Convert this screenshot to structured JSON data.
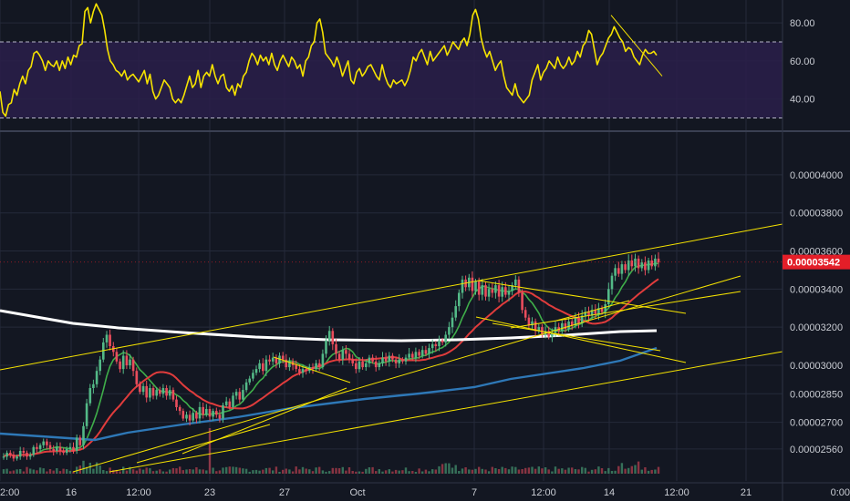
{
  "chart_data": [
    {
      "type": "line",
      "title": "",
      "xlabel": "",
      "ylabel": "",
      "ylim": [
        25,
        92
      ],
      "yticks": [
        "80.00",
        "60.00",
        "40.00"
      ],
      "band": [
        30,
        70
      ],
      "colors": {
        "line": "#f6e300",
        "band": "#2a1f4a",
        "bandLines": "#b6b6c8",
        "trend": "#f6e300"
      },
      "series": [
        {
          "values": [
            44,
            33,
            31,
            37,
            38,
            45,
            42,
            48,
            52,
            48,
            55,
            57,
            64,
            65,
            63,
            60,
            55,
            60,
            58,
            57,
            60,
            55,
            60,
            56,
            62,
            58,
            63,
            62,
            68,
            69,
            86,
            88,
            80,
            86,
            90,
            87,
            84,
            76,
            66,
            60,
            58,
            55,
            54,
            52,
            55,
            50,
            52,
            53,
            51,
            49,
            52,
            55,
            48,
            53,
            44,
            40,
            42,
            46,
            50,
            48,
            46,
            40,
            38,
            40,
            38,
            42,
            47,
            52,
            46,
            48,
            55,
            46,
            52,
            54,
            52,
            58,
            52,
            48,
            52,
            53,
            46,
            44,
            47,
            42,
            48,
            46,
            52,
            54,
            60,
            64,
            62,
            58,
            63,
            60,
            62,
            58,
            64,
            58,
            55,
            60,
            63,
            60,
            57,
            62,
            60,
            56,
            58,
            52,
            60,
            62,
            68,
            70,
            80,
            82,
            75,
            64,
            62,
            60,
            57,
            62,
            58,
            52,
            56,
            60,
            50,
            48,
            54,
            56,
            52,
            54,
            57,
            58,
            55,
            52,
            50,
            58,
            52,
            48,
            46,
            50,
            48,
            49,
            50,
            47,
            50,
            55,
            62,
            60,
            64,
            66,
            62,
            58,
            65,
            60,
            62,
            64,
            66,
            68,
            63,
            66,
            70,
            68,
            66,
            70,
            72,
            68,
            74,
            84,
            87,
            82,
            72,
            66,
            62,
            65,
            60,
            55,
            58,
            60,
            52,
            46,
            44,
            42,
            48,
            42,
            40,
            38,
            40,
            42,
            50,
            54,
            58,
            50,
            54,
            56,
            60,
            58,
            56,
            62,
            58,
            56,
            58,
            62,
            58,
            60,
            65,
            62,
            68,
            70,
            76,
            74,
            66,
            58,
            62,
            64,
            68,
            72,
            74,
            78,
            75,
            72,
            70,
            65,
            67,
            66,
            62,
            60,
            58,
            63,
            66,
            64,
            64,
            65,
            63
          ]
        }
      ]
    },
    {
      "type": "candlestick",
      "title": "",
      "xlabel": "",
      "ylabel": "",
      "ylim": [
        2.44e-05,
        4.21e-05
      ],
      "yticks": [
        "0.00004000",
        "0.00003800",
        "0.00003600",
        "0.00003400",
        "0.00003200",
        "0.00003000",
        "0.00002850",
        "0.00002700",
        "0.00002560"
      ],
      "xticks": [
        "2:00",
        "16",
        "12:00",
        "23",
        "27",
        "Oct",
        "7",
        "12:00",
        "14",
        "12:00",
        "21",
        "0:00"
      ],
      "last_price": "0.00003542",
      "colors": {
        "up": "#53b987",
        "down": "#eb4d5c",
        "priceTag": "#e31e28"
      },
      "close_values": [
        2.52e-05,
        2.54e-05,
        2.53e-05,
        2.51e-05,
        2.52e-05,
        2.55e-05,
        2.54e-05,
        2.52e-05,
        2.53e-05,
        2.57e-05,
        2.56e-05,
        2.58e-05,
        2.6e-05,
        2.58e-05,
        2.56e-05,
        2.55e-05,
        2.57e-05,
        2.55e-05,
        2.54e-05,
        2.56e-05,
        2.57e-05,
        2.55e-05,
        2.62e-05,
        2.58e-05,
        2.68e-05,
        2.8e-05,
        2.88e-05,
        2.9e-05,
        2.97e-05,
        3.03e-05,
        3.12e-05,
        3.16e-05,
        3.1e-05,
        3.07e-05,
        3.02e-05,
        2.98e-05,
        3.05e-05,
        3e-05,
        3.03e-05,
        2.97e-05,
        2.9e-05,
        2.86e-05,
        2.89e-05,
        2.83e-05,
        2.88e-05,
        2.84e-05,
        2.87e-05,
        2.85e-05,
        2.88e-05,
        2.84e-05,
        2.87e-05,
        2.82e-05,
        2.78e-05,
        2.76e-05,
        2.72e-05,
        2.74e-05,
        2.71e-05,
        2.75e-05,
        2.72e-05,
        2.78e-05,
        2.74e-05,
        2.77e-05,
        2.73e-05,
        2.76e-05,
        2.74e-05,
        2.72e-05,
        2.79e-05,
        2.81e-05,
        2.78e-05,
        2.84e-05,
        2.86e-05,
        2.82e-05,
        2.87e-05,
        2.91e-05,
        2.93e-05,
        2.96e-05,
        2.98e-05,
        3.01e-05,
        2.97e-05,
        3.03e-05,
        3.02e-05,
        3.04e-05,
        3.01e-05,
        3.05e-05,
        3.03e-05,
        2.99e-05,
        3.02e-05,
        3e-05,
        2.98e-05,
        2.96e-05,
        2.98e-05,
        2.97e-05,
        2.99e-05,
        2.98e-05,
        3.01e-05,
        2.99e-05,
        3.06e-05,
        3.13e-05,
        3.18e-05,
        3.11e-05,
        3.06e-05,
        3.03e-05,
        3.08e-05,
        3.06e-05,
        3.03e-05,
        3.01e-05,
        2.98e-05,
        3.02e-05,
        2.99e-05,
        3.01e-05,
        3.04e-05,
        3.02e-05,
        2.99e-05,
        3.01e-05,
        3.04e-05,
        3.02e-05,
        3.05e-05,
        3.03e-05,
        3.01e-05,
        3.03e-05,
        3.02e-05,
        3.04e-05,
        3.06e-05,
        3.04e-05,
        3.07e-05,
        3.05e-05,
        3.08e-05,
        3.06e-05,
        3.09e-05,
        3.11e-05,
        3.1e-05,
        3.13e-05,
        3.12e-05,
        3.16e-05,
        3.2e-05,
        3.25e-05,
        3.31e-05,
        3.38e-05,
        3.45e-05,
        3.41e-05,
        3.46e-05,
        3.39e-05,
        3.44e-05,
        3.37e-05,
        3.42e-05,
        3.36e-05,
        3.4e-05,
        3.38e-05,
        3.42e-05,
        3.36e-05,
        3.41e-05,
        3.37e-05,
        3.39e-05,
        3.42e-05,
        3.45e-05,
        3.38e-05,
        3.29e-05,
        3.25e-05,
        3.21e-05,
        3.23e-05,
        3.18e-05,
        3.2e-05,
        3.16e-05,
        3.18e-05,
        3.15e-05,
        3.17e-05,
        3.2e-05,
        3.18e-05,
        3.22e-05,
        3.19e-05,
        3.23e-05,
        3.21e-05,
        3.25e-05,
        3.22e-05,
        3.26e-05,
        3.28e-05,
        3.26e-05,
        3.29e-05,
        3.27e-05,
        3.3e-05,
        3.28e-05,
        3.32e-05,
        3.4e-05,
        3.47e-05,
        3.51e-05,
        3.48e-05,
        3.53e-05,
        3.5e-05,
        3.55e-05,
        3.52e-05,
        3.56e-05,
        3.51e-05,
        3.54e-05,
        3.5e-05,
        3.55e-05,
        3.52e-05,
        3.56e-05,
        3.54e-05
      ]
    }
  ]
}
